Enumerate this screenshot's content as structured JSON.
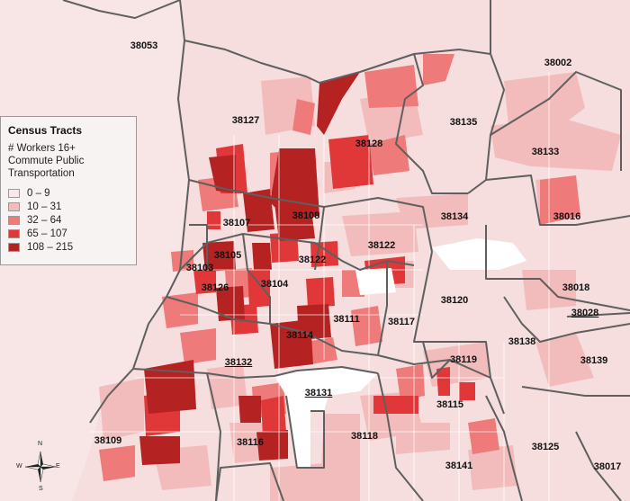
{
  "legend": {
    "title": "Census Tracts",
    "subtitle_lines": [
      "# Workers 16+",
      "Commute Public",
      "Transportation"
    ],
    "classes": [
      {
        "label": "0 – 9",
        "color": "#f7e9e9"
      },
      {
        "label": "10 – 31",
        "color": "#f3bcbc"
      },
      {
        "label": "32 – 64",
        "color": "#ee7a7a"
      },
      {
        "label": "65 – 107",
        "color": "#e03838"
      },
      {
        "label": "108 – 215",
        "color": "#b52222"
      }
    ]
  },
  "compass": {
    "n": "N",
    "s": "S",
    "e": "E",
    "w": "W"
  },
  "zip_labels": [
    "38053",
    "38002",
    "38127",
    "38135",
    "38128",
    "38133",
    "38134",
    "38016",
    "38108",
    "38107",
    "38122",
    "38105",
    "38103",
    "38104",
    "38126",
    "38018",
    "38120",
    "38028",
    "38111",
    "38117",
    "38114",
    "38138",
    "38119",
    "38139",
    "38132",
    "38131",
    "38115",
    "38109",
    "38116",
    "38118",
    "38125",
    "38141",
    "38017"
  ],
  "colors": {
    "background": "#f6dede",
    "boundary": "#5f5f5f",
    "white_area": "#ffffff"
  }
}
